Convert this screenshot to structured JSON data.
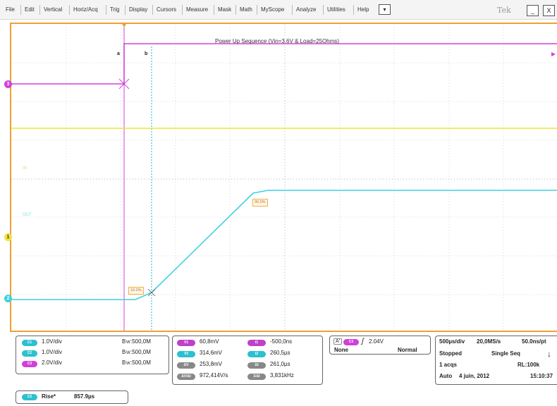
{
  "menu": {
    "items": [
      "File",
      "Edit",
      "Vertical",
      "Horiz/Acq",
      "Trig",
      "Display",
      "Cursors",
      "Measure",
      "Mask",
      "Math",
      "MyScope",
      "Analyze",
      "Utilities",
      "Help"
    ],
    "dropdown_glyph": "▾",
    "brand": "Tek",
    "minimize_glyph": "_",
    "close_glyph": "X"
  },
  "screen": {
    "title": "Power Up Sequence (Vin=3.6V & Load=25Ohms)",
    "cursor_a_label": "a",
    "cursor_b_label": "b",
    "tag_90": "90.0%",
    "tag_10": "10.0%",
    "ch_in_label": "IN",
    "ch_out_label": "OUT",
    "marker_ch1": "1",
    "marker_ch2": "2",
    "marker_ch3": "3"
  },
  "channels": [
    {
      "id": "C1",
      "scale": "1.0V/div",
      "bw_prefix": "B",
      "bw_sub": "W",
      "bandwidth": ":500,0M",
      "color": "#e0e020"
    },
    {
      "id": "C2",
      "scale": "1.0V/div",
      "bw_prefix": "B",
      "bw_sub": "W",
      "bandwidth": ":500,0M",
      "color": "#20c8d8"
    },
    {
      "id": "C3",
      "scale": "2.0V/div",
      "bw_prefix": "B",
      "bw_sub": "W",
      "bandwidth": ":500,0M",
      "color": "#d020d0"
    }
  ],
  "cursors": {
    "left": [
      {
        "label": "V1",
        "value": "60,8mV"
      },
      {
        "label": "V2",
        "value": "314,6mV"
      },
      {
        "label": "ΔV",
        "value": "253,8mV"
      },
      {
        "label": "ΔV/Δt",
        "value": "972,414V/s"
      }
    ],
    "right": [
      {
        "label": "t1",
        "value": "-500,0ns"
      },
      {
        "label": "t2",
        "value": "260,5µs"
      },
      {
        "label": "Δt",
        "value": "261,0µs"
      },
      {
        "label": "1/Δt",
        "value": "3,831kHz"
      }
    ]
  },
  "trigger": {
    "a_label": "A'",
    "source": "C3",
    "slope_glyph": "ʃ",
    "level": "2.04V",
    "coupling": "None",
    "mode": "Normal"
  },
  "acquisition": {
    "timebase": "500µs/div",
    "sample_rate": "20,0MS/s",
    "resolution": "50.0ns/pt",
    "state": "Stopped",
    "seq_mode": "Single Seq",
    "acqs": "1 acqs",
    "record_length": "RL:100k",
    "auto": "Auto",
    "date": "4 juin, 2012",
    "time": "15:10:37",
    "arrow_glyph": "↓"
  },
  "measurement": {
    "source": "C2",
    "name": "Rise*",
    "value": "857.9µs"
  },
  "colors": {
    "ch1": "#e8e830",
    "ch2": "#40d0e0",
    "ch3": "#d040d8",
    "frame": "#f0a030",
    "cursor_a": "#d040d8",
    "cursor_b": "#20b0c8"
  }
}
